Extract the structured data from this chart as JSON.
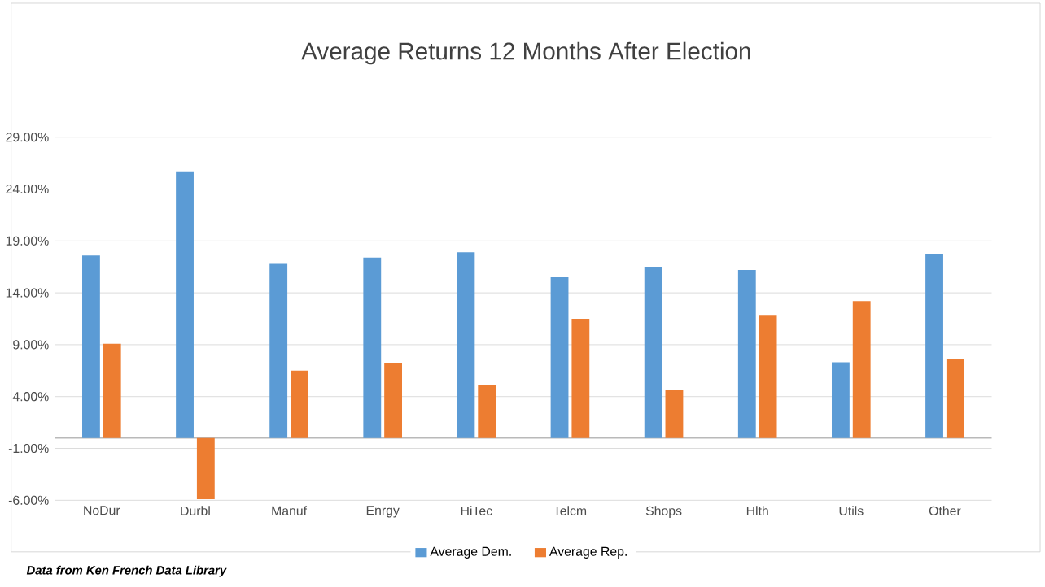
{
  "chart_data": {
    "type": "bar",
    "title": "Average Returns 12 Months After Election",
    "categories": [
      "NoDur",
      "Durbl",
      "Manuf",
      "Enrgy",
      "HiTec",
      "Telcm",
      "Shops",
      "Hlth",
      "Utils",
      "Other"
    ],
    "series": [
      {
        "name": "Average Dem.",
        "color": "#5b9bd5",
        "values": [
          17.6,
          25.7,
          16.8,
          17.4,
          17.9,
          15.5,
          16.5,
          16.2,
          7.3,
          17.7
        ]
      },
      {
        "name": "Average Rep.",
        "color": "#ed7d31",
        "values": [
          9.1,
          -5.9,
          6.5,
          7.2,
          5.1,
          11.5,
          4.6,
          11.8,
          13.2,
          7.6
        ]
      }
    ],
    "ylim": [
      -6,
      29
    ],
    "yticks": [
      {
        "value": -6,
        "label": "-6.00%"
      },
      {
        "value": -1,
        "label": "-1.00%"
      },
      {
        "value": 4,
        "label": "4.00%"
      },
      {
        "value": 9,
        "label": "9.00%"
      },
      {
        "value": 14,
        "label": "14.00%"
      },
      {
        "value": 19,
        "label": "19.00%"
      },
      {
        "value": 24,
        "label": "24.00%"
      },
      {
        "value": 29,
        "label": "29.00%"
      }
    ],
    "grid": "y",
    "legend": "bottom",
    "annotations": [
      "Data from Ken French Data Library"
    ]
  }
}
